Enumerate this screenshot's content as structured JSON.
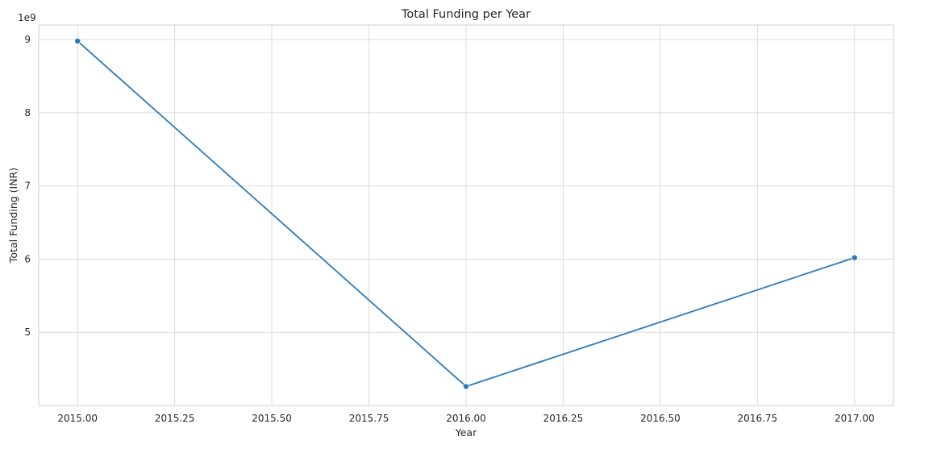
{
  "chart_data": {
    "type": "line",
    "title": "Total Funding per Year",
    "xlabel": "Year",
    "ylabel": "Total Funding (INR)",
    "y_offset_label": "1e9",
    "y_scale": 1000000000,
    "xlim": [
      2014.9,
      2017.1
    ],
    "ylim": [
      4000000000,
      9200000000
    ],
    "x_ticks": [
      2015.0,
      2015.25,
      2015.5,
      2015.75,
      2016.0,
      2016.25,
      2016.5,
      2016.75,
      2017.0
    ],
    "x_tick_labels": [
      "2015.00",
      "2015.25",
      "2015.50",
      "2015.75",
      "2016.00",
      "2016.25",
      "2016.50",
      "2016.75",
      "2017.00"
    ],
    "y_ticks": [
      5000000000,
      6000000000,
      7000000000,
      8000000000,
      9000000000
    ],
    "y_tick_labels": [
      "5",
      "6",
      "7",
      "8",
      "9"
    ],
    "grid": true,
    "series": [
      {
        "color": "#2b7bba",
        "x": [
          2015,
          2016,
          2017
        ],
        "y": [
          8980000000,
          4260000000,
          6020000000
        ]
      }
    ]
  }
}
